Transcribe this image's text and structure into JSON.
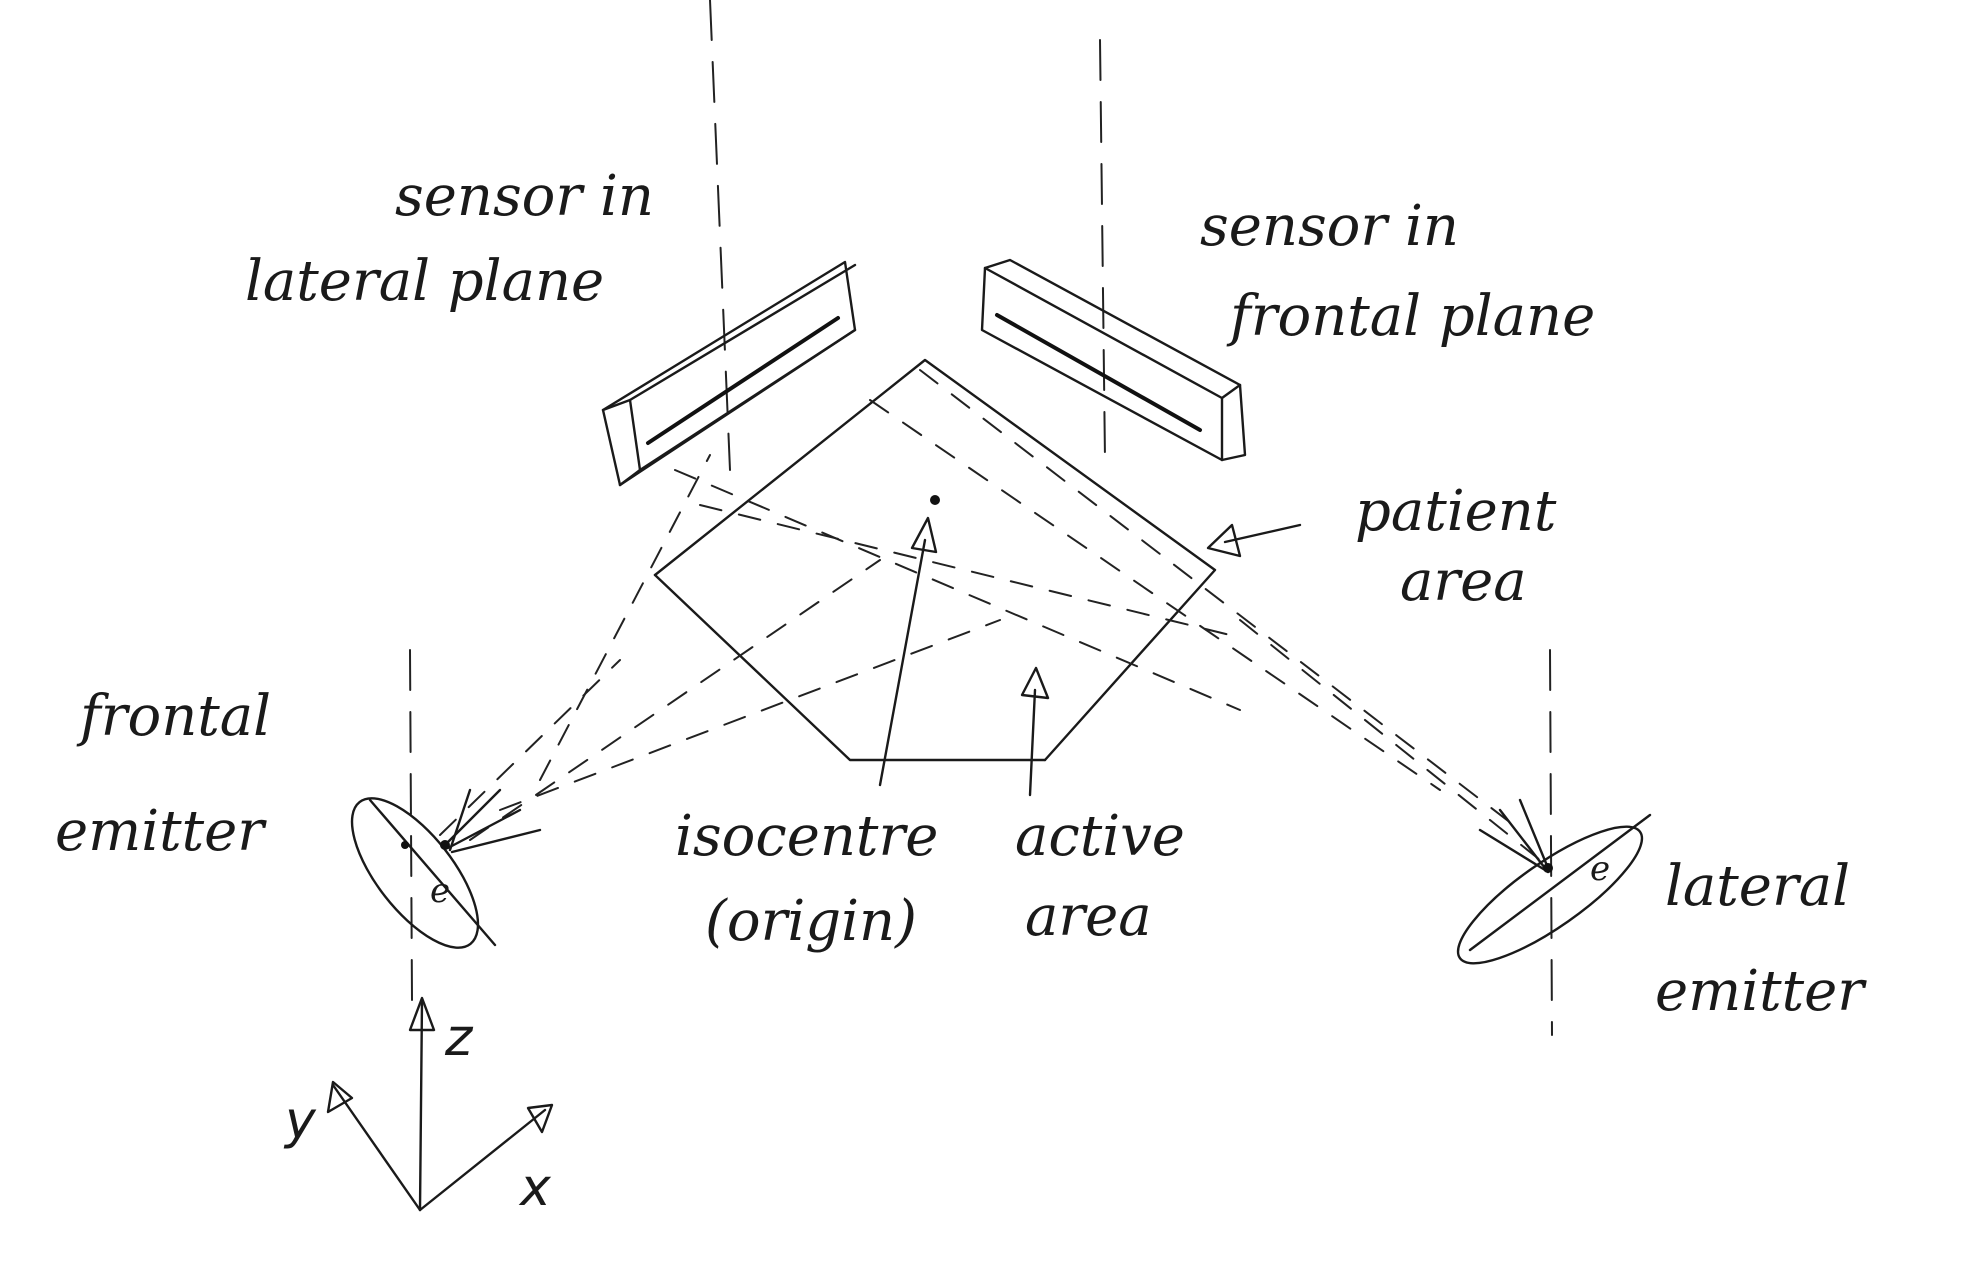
{
  "labels": {
    "sensor_lateral_line1": "sensor in",
    "sensor_lateral_line2": "lateral plane",
    "sensor_frontal_line1": "sensor in",
    "sensor_frontal_line2": "frontal plane",
    "patient_area_line1": "patient",
    "patient_area_line2": "area",
    "frontal_emitter_line1": "frontal",
    "frontal_emitter_line2": "emitter",
    "lateral_emitter_line1": "lateral",
    "lateral_emitter_line2": "emitter",
    "isocentre_line1": "isocentre",
    "isocentre_line2": "(origin)",
    "active_area_line1": "active",
    "active_area_line2": "area"
  },
  "axes": {
    "z": "z",
    "y": "y",
    "x": "x"
  },
  "emitter_glyph": "e",
  "ink_color": "#1a1a1a"
}
